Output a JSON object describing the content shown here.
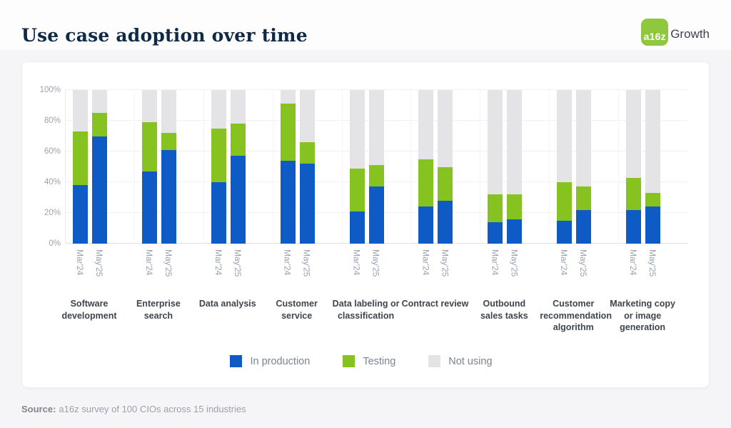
{
  "header": {
    "title": "Use case adoption over time",
    "logo_badge": "a16z",
    "logo_suffix": "Growth",
    "logo_color": "#8fc83c"
  },
  "footer": {
    "prefix": "Source:",
    "text": "a16z survey of 100 CIOs across 15 industries"
  },
  "chart_data": {
    "type": "stacked-bar",
    "title": "Use case adoption over time",
    "ylim": [
      0,
      100
    ],
    "y_ticks": [
      "0%",
      "20%",
      "40%",
      "60%",
      "80%",
      "100%"
    ],
    "grid": "horizontal",
    "periods": [
      "Mar'24",
      "May'25"
    ],
    "stack_order": [
      "in_production",
      "testing",
      "not_using"
    ],
    "legend_position": "bottom",
    "legend": [
      {
        "key": "in_production",
        "label": "In production",
        "color": "#0f5bc5"
      },
      {
        "key": "testing",
        "label": "Testing",
        "color": "#86c320"
      },
      {
        "key": "not_using",
        "label": "Not using",
        "color": "#e4e4e6"
      }
    ],
    "groups": [
      {
        "label": "Software development",
        "bars": [
          {
            "period": "Mar'24",
            "in_production": 38,
            "testing": 35,
            "not_using": 27
          },
          {
            "period": "May'25",
            "in_production": 70,
            "testing": 15,
            "not_using": 15
          }
        ]
      },
      {
        "label": "Enterprise search",
        "bars": [
          {
            "period": "Mar'24",
            "in_production": 47,
            "testing": 32,
            "not_using": 21
          },
          {
            "period": "May'25",
            "in_production": 61,
            "testing": 11,
            "not_using": 28
          }
        ]
      },
      {
        "label": "Data analysis",
        "bars": [
          {
            "period": "Mar'24",
            "in_production": 40,
            "testing": 35,
            "not_using": 25
          },
          {
            "period": "May'25",
            "in_production": 57,
            "testing": 21,
            "not_using": 22
          }
        ]
      },
      {
        "label": "Customer service",
        "bars": [
          {
            "period": "Mar'24",
            "in_production": 54,
            "testing": 37,
            "not_using": 9
          },
          {
            "period": "May'25",
            "in_production": 52,
            "testing": 14,
            "not_using": 34
          }
        ]
      },
      {
        "label": "Data labeling or classification",
        "bars": [
          {
            "period": "Mar'24",
            "in_production": 21,
            "testing": 28,
            "not_using": 51
          },
          {
            "period": "May'25",
            "in_production": 37,
            "testing": 14,
            "not_using": 49
          }
        ]
      },
      {
        "label": "Contract review",
        "bars": [
          {
            "period": "Mar'24",
            "in_production": 24,
            "testing": 31,
            "not_using": 45
          },
          {
            "period": "May'25",
            "in_production": 28,
            "testing": 22,
            "not_using": 50
          }
        ]
      },
      {
        "label": "Outbound sales tasks",
        "bars": [
          {
            "period": "Mar'24",
            "in_production": 14,
            "testing": 18,
            "not_using": 68
          },
          {
            "period": "May'25",
            "in_production": 16,
            "testing": 16,
            "not_using": 68
          }
        ]
      },
      {
        "label": "Customer recommendation algorithm",
        "bars": [
          {
            "period": "Mar'24",
            "in_production": 15,
            "testing": 25,
            "not_using": 60
          },
          {
            "period": "May'25",
            "in_production": 22,
            "testing": 15,
            "not_using": 63
          }
        ]
      },
      {
        "label": "Marketing copy or image generation",
        "bars": [
          {
            "period": "Mar'24",
            "in_production": 22,
            "testing": 21,
            "not_using": 57
          },
          {
            "period": "May'25",
            "in_production": 24,
            "testing": 9,
            "not_using": 67
          }
        ]
      }
    ]
  }
}
